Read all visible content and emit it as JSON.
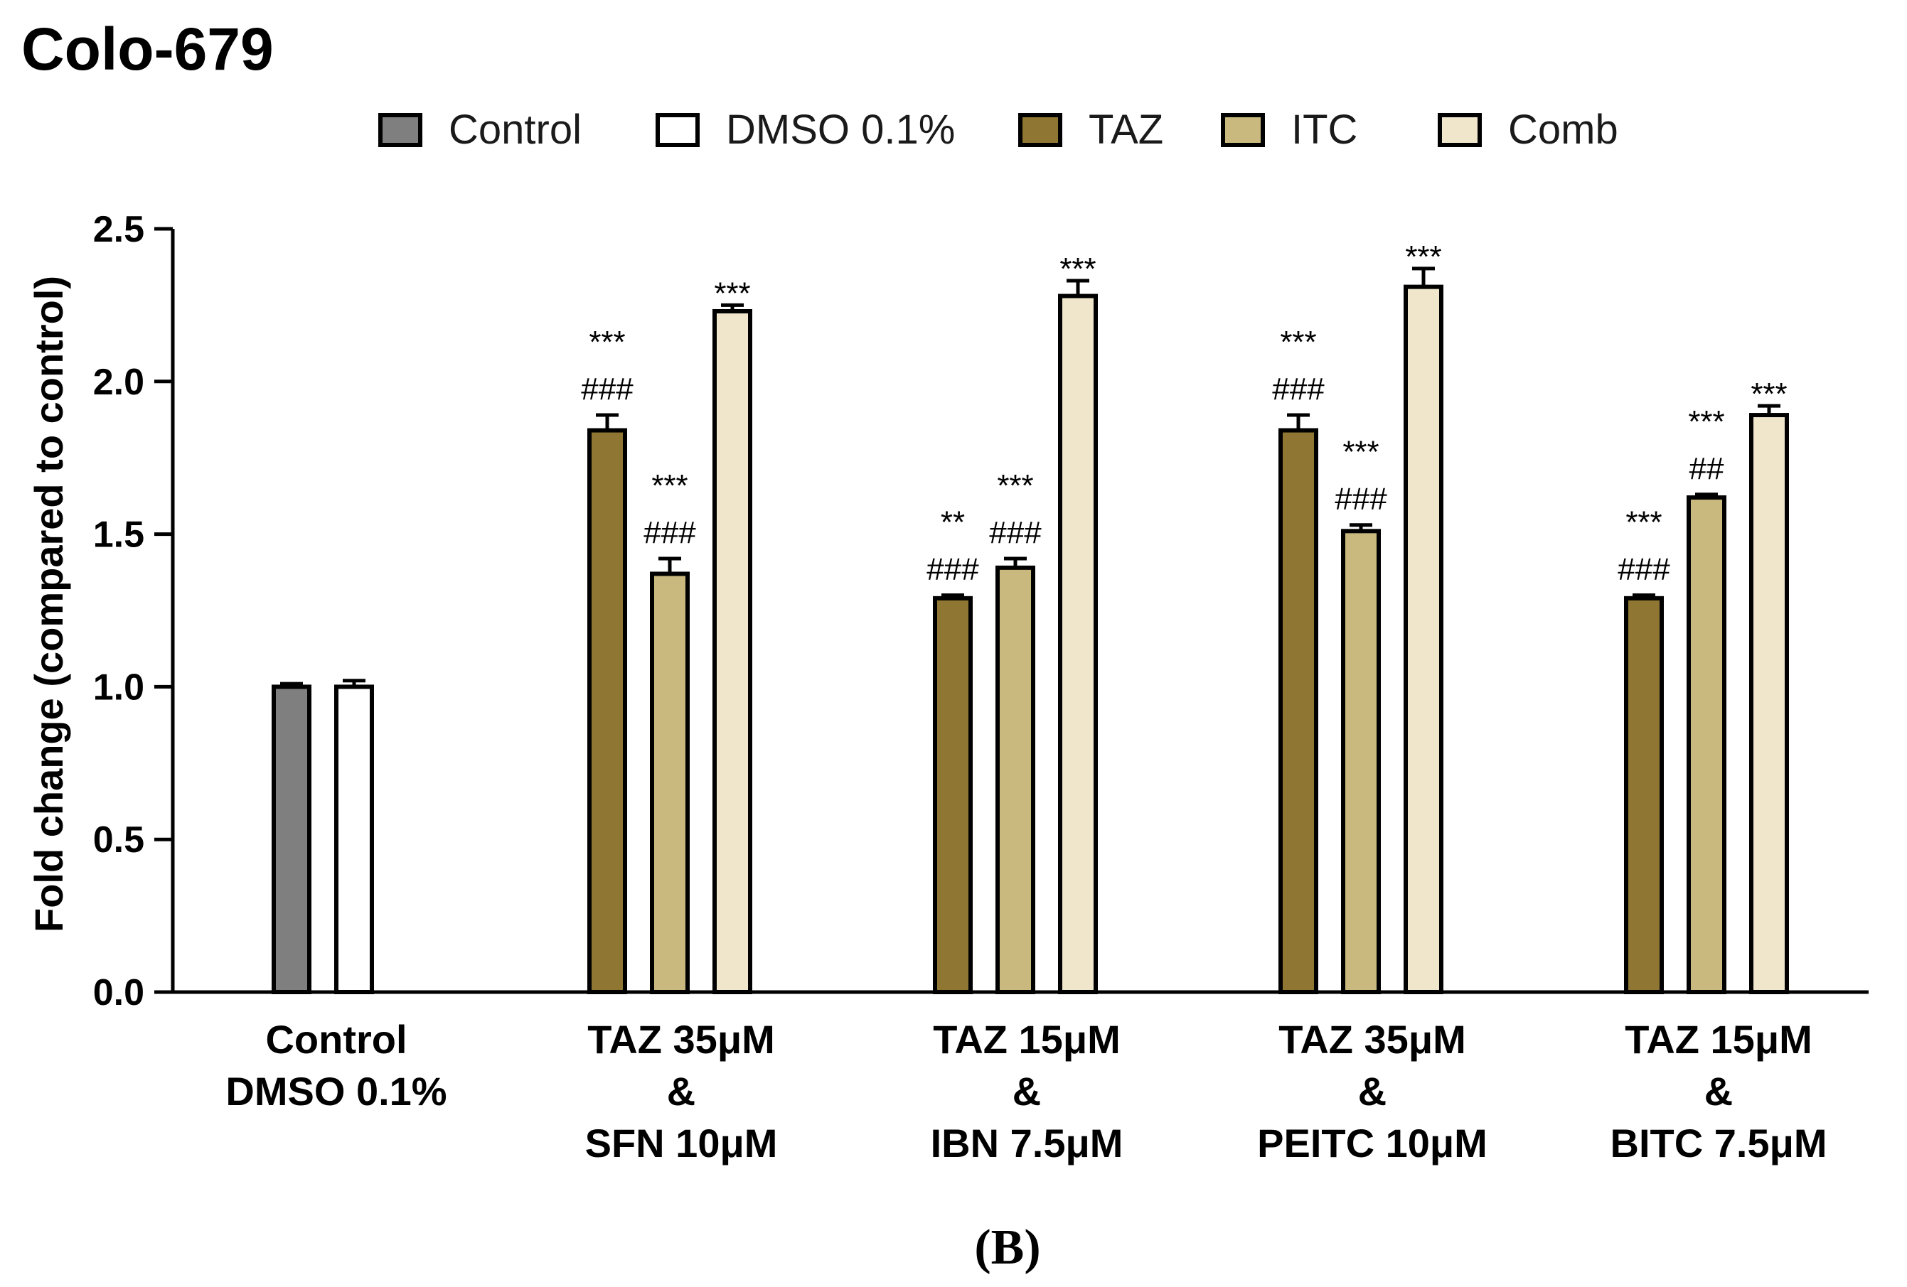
{
  "chart_data": {
    "type": "bar",
    "title": "Colo-679",
    "ylabel": "Fold change (compared to control)",
    "xlabel": "",
    "ylim": [
      0,
      2.5
    ],
    "yticks": [
      "0.0",
      "0.5",
      "1.0",
      "1.5",
      "2.0",
      "2.5"
    ],
    "legend_position": "top",
    "categories": [
      [
        "Control",
        "DMSO 0.1%"
      ],
      [
        "TAZ 35μM",
        "&",
        "SFN 10μM"
      ],
      [
        "TAZ 15μM",
        "&",
        "IBN 7.5μM"
      ],
      [
        "TAZ 35μM",
        "&",
        "PEITC 10μM"
      ],
      [
        "TAZ 15μM",
        "&",
        "BITC 7.5μM"
      ]
    ],
    "legend": [
      {
        "name": "Control",
        "color": "#7f7f7f"
      },
      {
        "name": "DMSO 0.1%",
        "color": "#ffffff"
      },
      {
        "name": "TAZ",
        "color": "#8f7632"
      },
      {
        "name": "ITC",
        "color": "#c9b97e"
      },
      {
        "name": "Comb",
        "color": "#efe6cc"
      }
    ],
    "bars": [
      {
        "group": 0,
        "series": "Control",
        "value": 1.0,
        "error": 0.01,
        "annot": []
      },
      {
        "group": 0,
        "series": "DMSO 0.1%",
        "value": 1.0,
        "error": 0.02,
        "annot": []
      },
      {
        "group": 1,
        "series": "TAZ",
        "value": 1.84,
        "error": 0.05,
        "annot": [
          "###",
          "***"
        ]
      },
      {
        "group": 1,
        "series": "ITC",
        "value": 1.37,
        "error": 0.05,
        "annot": [
          "###",
          "***"
        ]
      },
      {
        "group": 1,
        "series": "Comb",
        "value": 2.23,
        "error": 0.02,
        "annot": [
          "***"
        ]
      },
      {
        "group": 2,
        "series": "TAZ",
        "value": 1.29,
        "error": 0.01,
        "annot": [
          "###",
          "**"
        ]
      },
      {
        "group": 2,
        "series": "ITC",
        "value": 1.39,
        "error": 0.03,
        "annot": [
          "###",
          "***"
        ]
      },
      {
        "group": 2,
        "series": "Comb",
        "value": 2.28,
        "error": 0.05,
        "annot": [
          "***"
        ]
      },
      {
        "group": 3,
        "series": "TAZ",
        "value": 1.84,
        "error": 0.05,
        "annot": [
          "###",
          "***"
        ]
      },
      {
        "group": 3,
        "series": "ITC",
        "value": 1.51,
        "error": 0.02,
        "annot": [
          "###",
          "***"
        ]
      },
      {
        "group": 3,
        "series": "Comb",
        "value": 2.31,
        "error": 0.06,
        "annot": [
          "***"
        ]
      },
      {
        "group": 4,
        "series": "TAZ",
        "value": 1.29,
        "error": 0.01,
        "annot": [
          "###",
          "***"
        ]
      },
      {
        "group": 4,
        "series": "ITC",
        "value": 1.62,
        "error": 0.01,
        "annot": [
          "##",
          "***"
        ]
      },
      {
        "group": 4,
        "series": "Comb",
        "value": 1.89,
        "error": 0.03,
        "annot": [
          "***"
        ]
      }
    ]
  },
  "panel_label": "(B)"
}
